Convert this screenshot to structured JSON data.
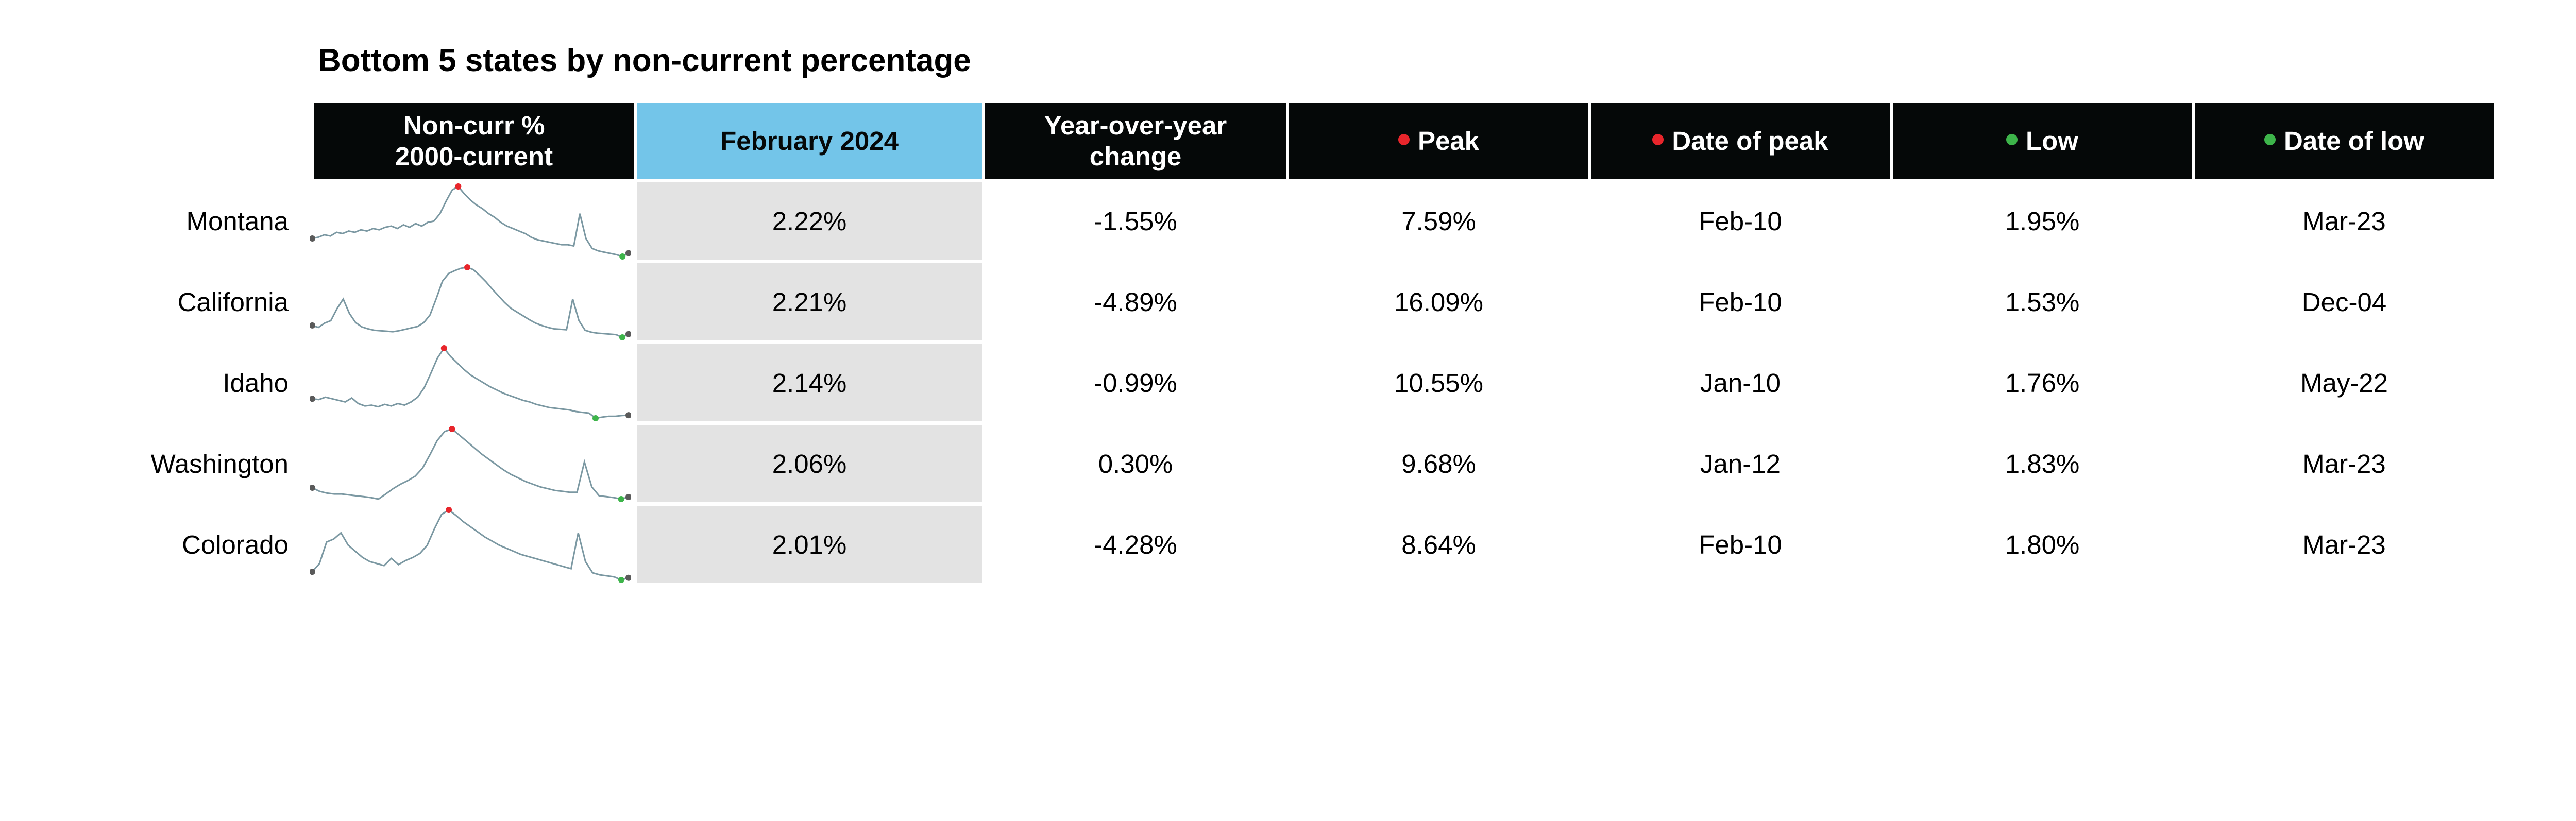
{
  "title": "Bottom 5 states by non-current percentage",
  "colors": {
    "header_bg": "#050808",
    "header_highlight": "#73c5e9",
    "cell_shade": "#e3e3e3",
    "peak_dot": "#e8252b",
    "low_dot": "#3db44a",
    "endpoint_dot": "#5a5a5a",
    "sparkline": "#7b98a2"
  },
  "headers": {
    "spark_line1": "Non-curr %",
    "spark_line2": "2000-current",
    "current": "February 2024",
    "yoy_line1": "Year-over-year",
    "yoy_line2": "change",
    "peak": "Peak",
    "date_peak": "Date of peak",
    "low": "Low",
    "date_low": "Date of low"
  },
  "chart_data": {
    "type": "table",
    "title": "Bottom 5 states by non-current percentage",
    "columns": [
      "Non-curr % 2000-current",
      "February 2024",
      "Year-over-year change",
      "Peak",
      "Date of peak",
      "Low",
      "Date of low"
    ],
    "rows": [
      {
        "state": "Montana",
        "current": "2.22%",
        "yoy": "-1.55%",
        "peak": "7.59%",
        "peak_date": "Feb-10",
        "low": "1.95%",
        "low_date": "Mar-23",
        "spark": {
          "peak": 7.59,
          "low": 1.95,
          "end": 2.22,
          "series": [
            3.4,
            3.5,
            3.7,
            3.6,
            3.9,
            3.8,
            4.0,
            3.9,
            4.1,
            4.0,
            4.2,
            4.1,
            4.3,
            4.4,
            4.2,
            4.5,
            4.3,
            4.6,
            4.4,
            4.7,
            4.8,
            5.4,
            6.4,
            7.3,
            7.59,
            7.0,
            6.5,
            6.1,
            5.8,
            5.4,
            5.1,
            4.7,
            4.4,
            4.2,
            4.0,
            3.8,
            3.5,
            3.3,
            3.2,
            3.1,
            3.0,
            2.9,
            2.9,
            2.8,
            5.4,
            3.4,
            2.6,
            2.4,
            2.3,
            2.2,
            2.1,
            1.95,
            2.22
          ]
        }
      },
      {
        "state": "California",
        "current": "2.21%",
        "yoy": "-4.89%",
        "peak": "16.09%",
        "peak_date": "Feb-10",
        "low": "1.53%",
        "low_date": "Dec-04",
        "spark": {
          "peak": 16.09,
          "low": 1.53,
          "end": 2.21,
          "series": [
            4.0,
            3.6,
            4.5,
            5.0,
            7.5,
            9.5,
            6.5,
            4.6,
            3.7,
            3.3,
            3.0,
            2.9,
            2.8,
            2.7,
            2.9,
            3.2,
            3.5,
            3.8,
            4.6,
            6.2,
            9.6,
            13.2,
            14.8,
            15.4,
            15.9,
            16.09,
            15.6,
            14.4,
            13.1,
            11.6,
            10.2,
            8.8,
            7.6,
            6.8,
            6.0,
            5.2,
            4.5,
            4.0,
            3.6,
            3.3,
            3.2,
            3.1,
            9.5,
            5.0,
            3.0,
            2.6,
            2.4,
            2.3,
            2.2,
            2.1,
            1.53,
            2.21
          ]
        }
      },
      {
        "state": "Idaho",
        "current": "2.14%",
        "yoy": "-0.99%",
        "peak": "10.55%",
        "peak_date": "Jan-10",
        "low": "1.76%",
        "low_date": "May-22",
        "spark": {
          "peak": 10.55,
          "low": 1.76,
          "end": 2.14,
          "series": [
            4.2,
            4.1,
            4.4,
            4.2,
            4.0,
            3.8,
            4.3,
            3.6,
            3.3,
            3.4,
            3.2,
            3.5,
            3.3,
            3.6,
            3.4,
            3.8,
            4.4,
            5.6,
            7.4,
            9.3,
            10.55,
            9.5,
            8.7,
            7.9,
            7.2,
            6.7,
            6.2,
            5.7,
            5.3,
            4.9,
            4.6,
            4.3,
            4.0,
            3.8,
            3.5,
            3.3,
            3.1,
            3.0,
            2.9,
            2.8,
            2.6,
            2.5,
            2.4,
            1.76,
            1.9,
            2.0,
            2.0,
            2.1,
            2.14
          ]
        }
      },
      {
        "state": "Washington",
        "current": "2.06%",
        "yoy": "0.30%",
        "peak": "9.68%",
        "peak_date": "Jan-12",
        "low": "1.83%",
        "low_date": "Mar-23",
        "spark": {
          "peak": 9.68,
          "low": 1.83,
          "end": 2.06,
          "series": [
            3.1,
            2.7,
            2.5,
            2.4,
            2.4,
            2.3,
            2.2,
            2.1,
            2.0,
            1.83,
            2.4,
            3.0,
            3.5,
            3.9,
            4.4,
            5.3,
            6.8,
            8.4,
            9.4,
            9.68,
            9.0,
            8.3,
            7.6,
            6.9,
            6.3,
            5.7,
            5.1,
            4.6,
            4.2,
            3.8,
            3.5,
            3.2,
            3.0,
            2.8,
            2.7,
            2.6,
            2.6,
            6.0,
            3.2,
            2.2,
            2.1,
            2.0,
            1.83,
            2.06
          ]
        }
      },
      {
        "state": "Colorado",
        "current": "2.01%",
        "yoy": "-4.28%",
        "peak": "8.64%",
        "peak_date": "Feb-10",
        "low": "1.80%",
        "low_date": "Mar-23",
        "spark": {
          "peak": 8.64,
          "low": 1.8,
          "end": 2.01,
          "series": [
            2.6,
            3.4,
            5.5,
            5.8,
            6.4,
            5.2,
            4.6,
            4.0,
            3.6,
            3.4,
            3.2,
            3.9,
            3.3,
            3.7,
            4.0,
            4.4,
            5.2,
            6.8,
            8.2,
            8.64,
            8.1,
            7.5,
            7.0,
            6.5,
            6.0,
            5.6,
            5.2,
            4.9,
            4.6,
            4.3,
            4.1,
            3.9,
            3.7,
            3.5,
            3.3,
            3.1,
            2.9,
            6.4,
            3.6,
            2.5,
            2.3,
            2.2,
            2.1,
            1.8,
            2.01
          ]
        }
      }
    ]
  }
}
